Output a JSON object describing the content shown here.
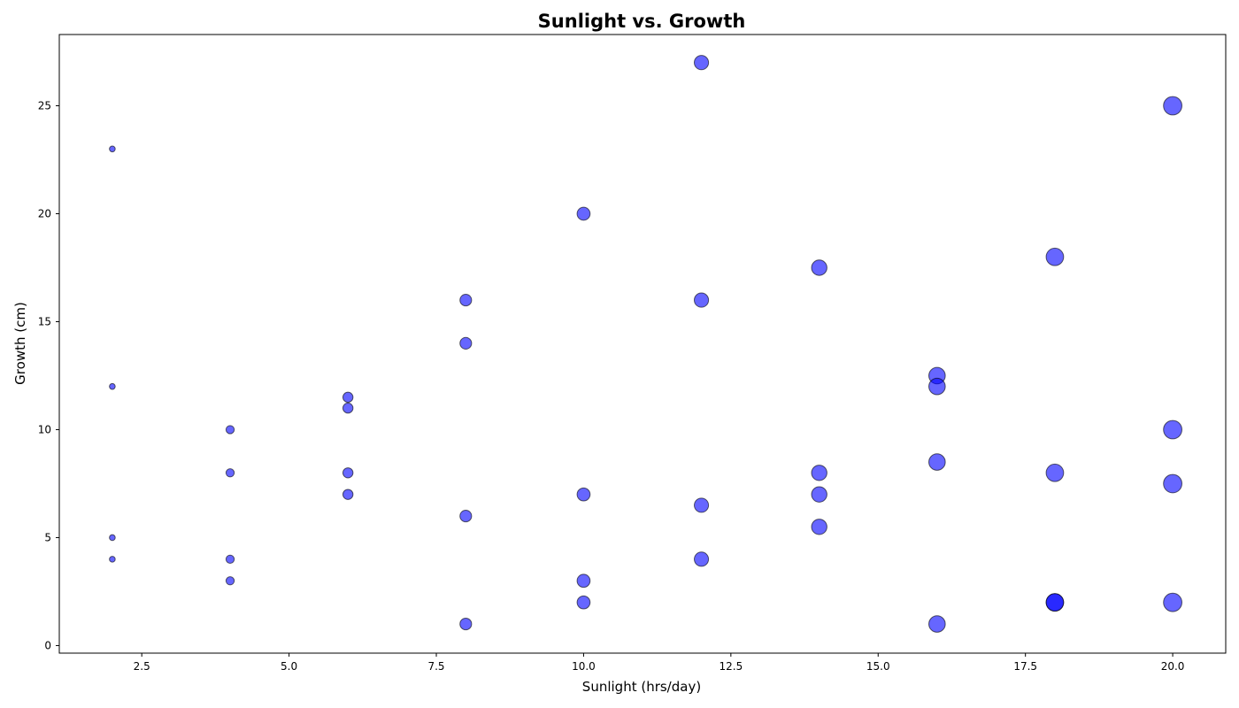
{
  "chart_data": {
    "type": "scatter",
    "title": "Sunlight vs. Growth",
    "xlabel": "Sunlight (hrs/day)",
    "ylabel": "Growth (cm)",
    "xlim": [
      1.1,
      20.9
    ],
    "ylim": [
      -0.35,
      28.3
    ],
    "xticks": [
      2.5,
      5.0,
      7.5,
      10.0,
      12.5,
      15.0,
      17.5,
      20.0
    ],
    "xtick_labels": [
      "2.5",
      "5.0",
      "7.5",
      "10.0",
      "12.5",
      "15.0",
      "17.5",
      "20.0"
    ],
    "yticks": [
      0,
      5,
      10,
      15,
      20,
      25
    ],
    "ytick_labels": [
      "0",
      "5",
      "10",
      "15",
      "20",
      "25"
    ],
    "grid": false,
    "color": "#0000ff",
    "alpha": 0.6,
    "size_rule": "marker area proportional to sunlight hours",
    "points": [
      {
        "x": 2,
        "y": 23
      },
      {
        "x": 2,
        "y": 12
      },
      {
        "x": 2,
        "y": 5
      },
      {
        "x": 2,
        "y": 4
      },
      {
        "x": 4,
        "y": 10
      },
      {
        "x": 4,
        "y": 8
      },
      {
        "x": 4,
        "y": 4
      },
      {
        "x": 4,
        "y": 3
      },
      {
        "x": 6,
        "y": 11.5
      },
      {
        "x": 6,
        "y": 11
      },
      {
        "x": 6,
        "y": 8
      },
      {
        "x": 6,
        "y": 7
      },
      {
        "x": 8,
        "y": 16
      },
      {
        "x": 8,
        "y": 14
      },
      {
        "x": 8,
        "y": 6
      },
      {
        "x": 8,
        "y": 1
      },
      {
        "x": 10,
        "y": 20
      },
      {
        "x": 10,
        "y": 7
      },
      {
        "x": 10,
        "y": 3
      },
      {
        "x": 10,
        "y": 2
      },
      {
        "x": 12,
        "y": 27
      },
      {
        "x": 12,
        "y": 16
      },
      {
        "x": 12,
        "y": 6.5
      },
      {
        "x": 12,
        "y": 4
      },
      {
        "x": 14,
        "y": 17.5
      },
      {
        "x": 14,
        "y": 8
      },
      {
        "x": 14,
        "y": 7
      },
      {
        "x": 14,
        "y": 5.5
      },
      {
        "x": 16,
        "y": 12.5
      },
      {
        "x": 16,
        "y": 12
      },
      {
        "x": 16,
        "y": 8.5
      },
      {
        "x": 16,
        "y": 1
      },
      {
        "x": 18,
        "y": 18
      },
      {
        "x": 18,
        "y": 8
      },
      {
        "x": 18,
        "y": 2
      },
      {
        "x": 18,
        "y": 2
      },
      {
        "x": 20,
        "y": 25
      },
      {
        "x": 20,
        "y": 10
      },
      {
        "x": 20,
        "y": 7.5
      },
      {
        "x": 20,
        "y": 2
      }
    ]
  }
}
